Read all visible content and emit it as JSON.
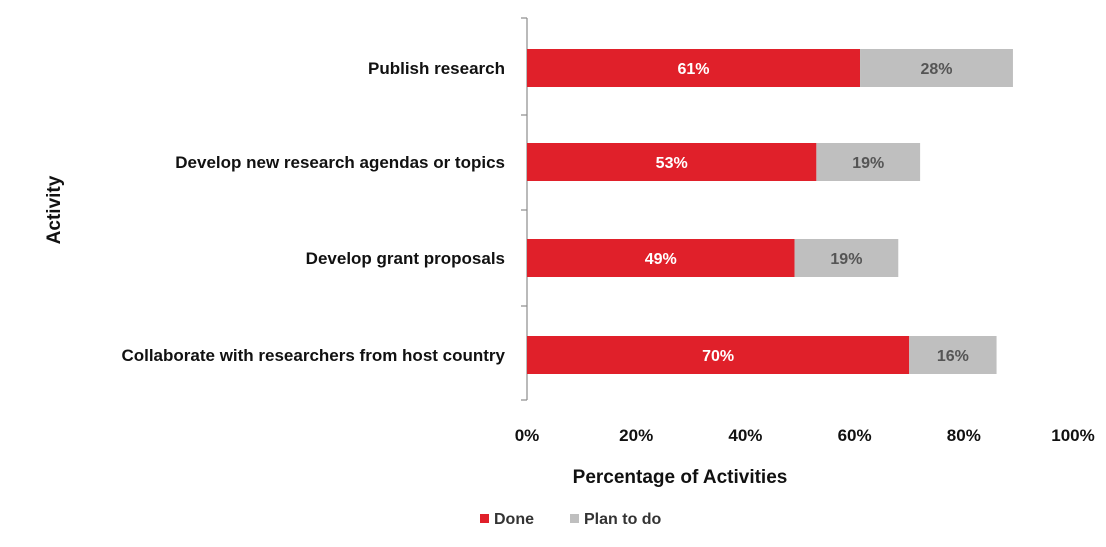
{
  "chart_data": {
    "type": "bar",
    "orientation": "horizontal",
    "stacked": true,
    "categories": [
      "Publish research",
      "Develop new research agendas or topics",
      "Develop grant proposals",
      "Collaborate with researchers from host country"
    ],
    "series": [
      {
        "name": "Done",
        "color": "#e0202a",
        "values": [
          61,
          53,
          49,
          70
        ],
        "labels": [
          "61%",
          "53%",
          "49%",
          "70%"
        ],
        "label_color": "#ffffff"
      },
      {
        "name": "Plan to do",
        "color": "#bfbfbf",
        "values": [
          28,
          19,
          19,
          16
        ],
        "labels": [
          "28%",
          "19%",
          "19%",
          "16%"
        ],
        "label_color": "#555555"
      }
    ],
    "xlim": [
      0,
      100
    ],
    "xticks": [
      0,
      20,
      40,
      60,
      80,
      100
    ],
    "xtick_labels": [
      "0%",
      "20%",
      "40%",
      "60%",
      "80%",
      "100%"
    ],
    "xlabel": "Percentage of Activities",
    "ylabel": "Activity",
    "grid": false,
    "legend": "bottom-center"
  }
}
